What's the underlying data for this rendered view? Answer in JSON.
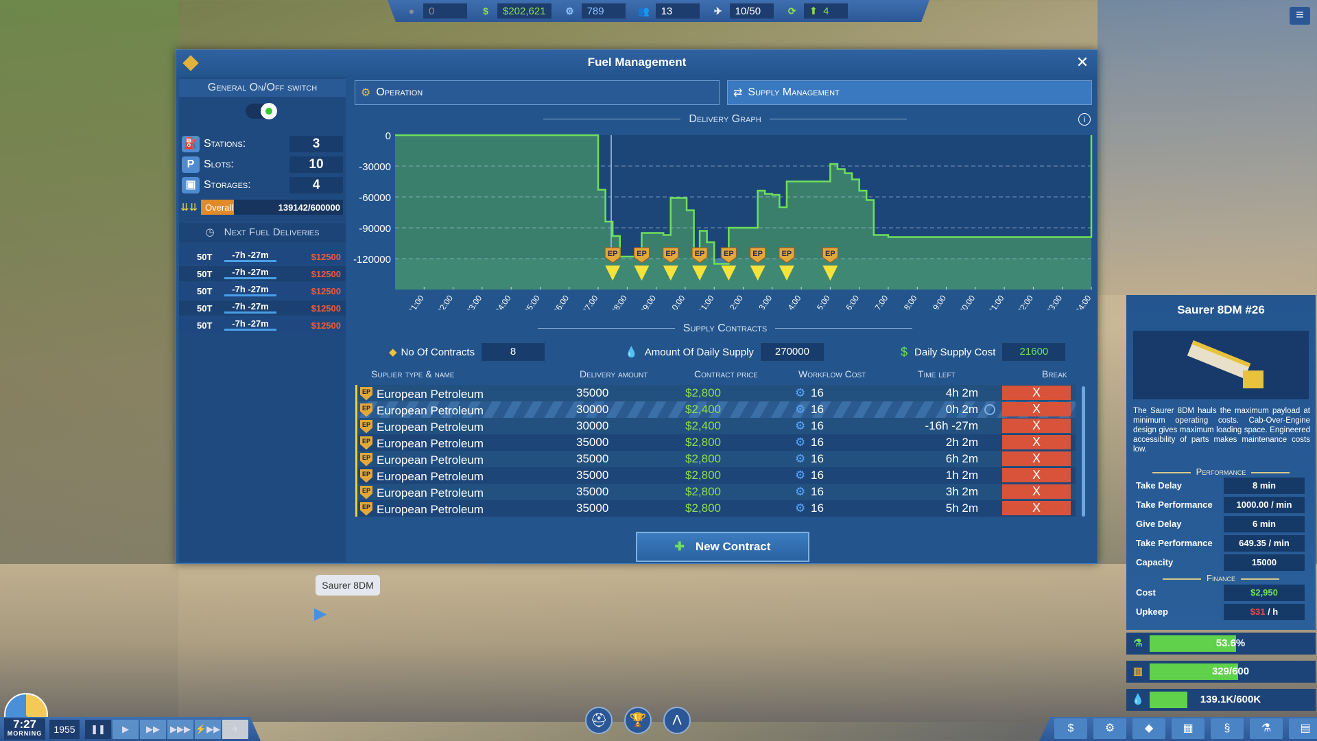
{
  "topbar": {
    "items": [
      {
        "icon": "reputation-icon",
        "value": "0",
        "color": "#8a8f99"
      },
      {
        "icon": "dollar-icon",
        "value": "$202,621",
        "color": "#8fe04a"
      },
      {
        "icon": "gear-icon",
        "value": "789",
        "color": "#8fc0ff"
      },
      {
        "icon": "people-icon",
        "value": "13",
        "color": "#ffffff"
      },
      {
        "icon": "airplane-icon",
        "value": "10/50",
        "color": "#ffffff"
      },
      {
        "icon": "flights-cycle-icon",
        "value": "4",
        "color": "#8fe04a"
      }
    ]
  },
  "window": {
    "title": "Fuel Management"
  },
  "left": {
    "switch_label": "General On/Off switch",
    "switch_on": true,
    "stats": [
      {
        "icon": "fuel-pump-icon",
        "label": "Stations:",
        "value": "3"
      },
      {
        "icon": "parking-icon",
        "label": "Slots:",
        "value": "10"
      },
      {
        "icon": "storage-tank-icon",
        "label": "Storages:",
        "value": "4"
      }
    ],
    "overall": {
      "label": "Overall",
      "value": "139142/600000",
      "fraction": 0.232
    },
    "deliveries_title": "Next Fuel Deliveries",
    "deliveries": [
      {
        "amount": "50T",
        "time": "-7h -27m",
        "price": "$12500"
      },
      {
        "amount": "50T",
        "time": "-7h -27m",
        "price": "$12500"
      },
      {
        "amount": "50T",
        "time": "-7h -27m",
        "price": "$12500"
      },
      {
        "amount": "50T",
        "time": "-7h -27m",
        "price": "$12500"
      },
      {
        "amount": "50T",
        "time": "-7h -27m",
        "price": "$12500"
      }
    ]
  },
  "tabs": [
    {
      "label": "Operation",
      "active": false
    },
    {
      "label": "Supply Management",
      "active": true
    }
  ],
  "graph_title": "Delivery Graph",
  "chart_data": {
    "type": "area",
    "title": "Delivery Graph",
    "step": true,
    "xlim": [
      0,
      24
    ],
    "ylim": [
      -150000,
      0
    ],
    "yticks": [
      0,
      -30000,
      -60000,
      -90000,
      -120000
    ],
    "ytick_labels": [
      "0",
      "-30000",
      "-60000",
      "-90000",
      "-120000"
    ],
    "xtick_labels": [
      "01:00",
      "02:00",
      "03:00",
      "04:00",
      "05:00",
      "06:00",
      "07:00",
      "08:00",
      "09:00",
      "10:00",
      "11:00",
      "12:00",
      "13:00",
      "14:00",
      "15:00",
      "16:00",
      "17:00",
      "18:00",
      "19:00",
      "20:00",
      "21:00",
      "22:00",
      "23:00",
      "24:00"
    ],
    "grid": true,
    "current_time": 7.45,
    "points": [
      [
        0,
        0
      ],
      [
        7,
        -53000
      ],
      [
        7.25,
        -84000
      ],
      [
        7.5,
        -98000
      ],
      [
        7.75,
        -118000
      ],
      [
        8.5,
        -95000
      ],
      [
        9.25,
        -97000
      ],
      [
        9.5,
        -61000
      ],
      [
        10.05,
        -73000
      ],
      [
        10.3,
        -112000
      ],
      [
        10.5,
        -93000
      ],
      [
        10.75,
        -104000
      ],
      [
        11,
        -125000
      ],
      [
        11.5,
        -90000
      ],
      [
        12.5,
        -54000
      ],
      [
        12.75,
        -57000
      ],
      [
        13,
        -58000
      ],
      [
        13.25,
        -70000
      ],
      [
        13.5,
        -45000
      ],
      [
        15,
        -28000
      ],
      [
        15.25,
        -33000
      ],
      [
        15.5,
        -37000
      ],
      [
        15.75,
        -43000
      ],
      [
        16,
        -54000
      ],
      [
        16.25,
        -63000
      ],
      [
        16.5,
        -97000
      ],
      [
        17,
        -99000
      ],
      [
        24,
        -99000
      ]
    ],
    "deliveries": {
      "label": "EP",
      "hours": [
        7.5,
        8.5,
        9.5,
        10.5,
        11.5,
        12.5,
        13.5,
        15
      ]
    },
    "colors": {
      "fill": "#3f8a6a",
      "line": "#6ee05a",
      "reserve": "#4a8bb0",
      "marker": "#f5e23a"
    }
  },
  "contracts": {
    "title": "Supply Contracts",
    "summary": {
      "count_label": "No Of Contracts",
      "count": "8",
      "supply_label": "Amount Of Daily Supply",
      "supply": "270000",
      "cost_label": "Daily Supply Cost",
      "cost": "21600"
    },
    "headers": [
      "Suplier type & name",
      "Delivery amount",
      "Contract price",
      "Workflow Cost",
      "Time left",
      "Break"
    ],
    "rows": [
      {
        "name": "European Petroleum",
        "amount": "35000",
        "price": "$2,800",
        "workflow": "16",
        "time": "4h 2m"
      },
      {
        "name": "European Petroleum",
        "amount": "30000",
        "price": "$2,400",
        "workflow": "16",
        "time": "0h 2m",
        "active": true
      },
      {
        "name": "European Petroleum",
        "amount": "30000",
        "price": "$2,400",
        "workflow": "16",
        "time": "-16h -27m"
      },
      {
        "name": "European Petroleum",
        "amount": "35000",
        "price": "$2,800",
        "workflow": "16",
        "time": "2h 2m"
      },
      {
        "name": "European Petroleum",
        "amount": "35000",
        "price": "$2,800",
        "workflow": "16",
        "time": "6h 2m"
      },
      {
        "name": "European Petroleum",
        "amount": "35000",
        "price": "$2,800",
        "workflow": "16",
        "time": "1h 2m"
      },
      {
        "name": "European Petroleum",
        "amount": "35000",
        "price": "$2,800",
        "workflow": "16",
        "time": "3h 2m"
      },
      {
        "name": "European Petroleum",
        "amount": "35000",
        "price": "$2,800",
        "workflow": "16",
        "time": "5h 2m"
      }
    ],
    "break_label": "X",
    "ep_logo": "EP",
    "new_contract": "New Contract"
  },
  "vehicle": {
    "title": "Saurer 8DM #26",
    "tooltip": "Saurer 8DM",
    "description": "The Saurer 8DM hauls the maximum payload at minimum operating costs. Cab-Over-Engine design gives maximum loading space. Engineered accessibility of parts makes maintenance costs low.",
    "performance_title": "Performance",
    "performance": [
      {
        "k": "Take Delay",
        "v": "8 min"
      },
      {
        "k": "Take Performance",
        "v": "1000.00 / min"
      },
      {
        "k": "Give Delay",
        "v": "6 min"
      },
      {
        "k": "Take Performance",
        "v": "649.35 / min"
      },
      {
        "k": "Capacity",
        "v": "15000"
      }
    ],
    "finance_title": "Finance",
    "cost_label": "Cost",
    "cost": "$2,950",
    "upkeep_label": "Upkeep",
    "upkeep": "$31",
    "upkeep_unit": " / h"
  },
  "status_bars": [
    {
      "icon": "flask-icon",
      "text": "53.6%",
      "fraction": 0.536
    },
    {
      "icon": "cargo-icon",
      "text": "329/600",
      "fraction": 0.548
    },
    {
      "icon": "fuel-drops-icon",
      "text": "139.1K/600K",
      "fraction": 0.232
    }
  ],
  "clock": {
    "time": "7:27",
    "period": "MORNING",
    "year": "1955"
  },
  "speed": [
    "❚❚",
    "▶",
    "▶▶",
    "▶▶▶",
    "⚡▶▶",
    "✈"
  ],
  "bottom_center": [
    {
      "icon": "worker-icon",
      "glyph": "⛑"
    },
    {
      "icon": "trophy-icon",
      "glyph": "🏆"
    },
    {
      "icon": "road-icon",
      "glyph": "Λ"
    }
  ],
  "bottom_right": [
    {
      "icon": "finance-icon",
      "glyph": "$"
    },
    {
      "icon": "cargo-settings-icon",
      "glyph": "⚙"
    },
    {
      "icon": "fuel-settings-icon",
      "glyph": "◆"
    },
    {
      "icon": "calendar-icon",
      "glyph": "▦"
    },
    {
      "icon": "contracts-icon",
      "glyph": "§"
    },
    {
      "icon": "research-icon",
      "glyph": "⚗"
    },
    {
      "icon": "statistics-icon",
      "glyph": "▤"
    }
  ]
}
